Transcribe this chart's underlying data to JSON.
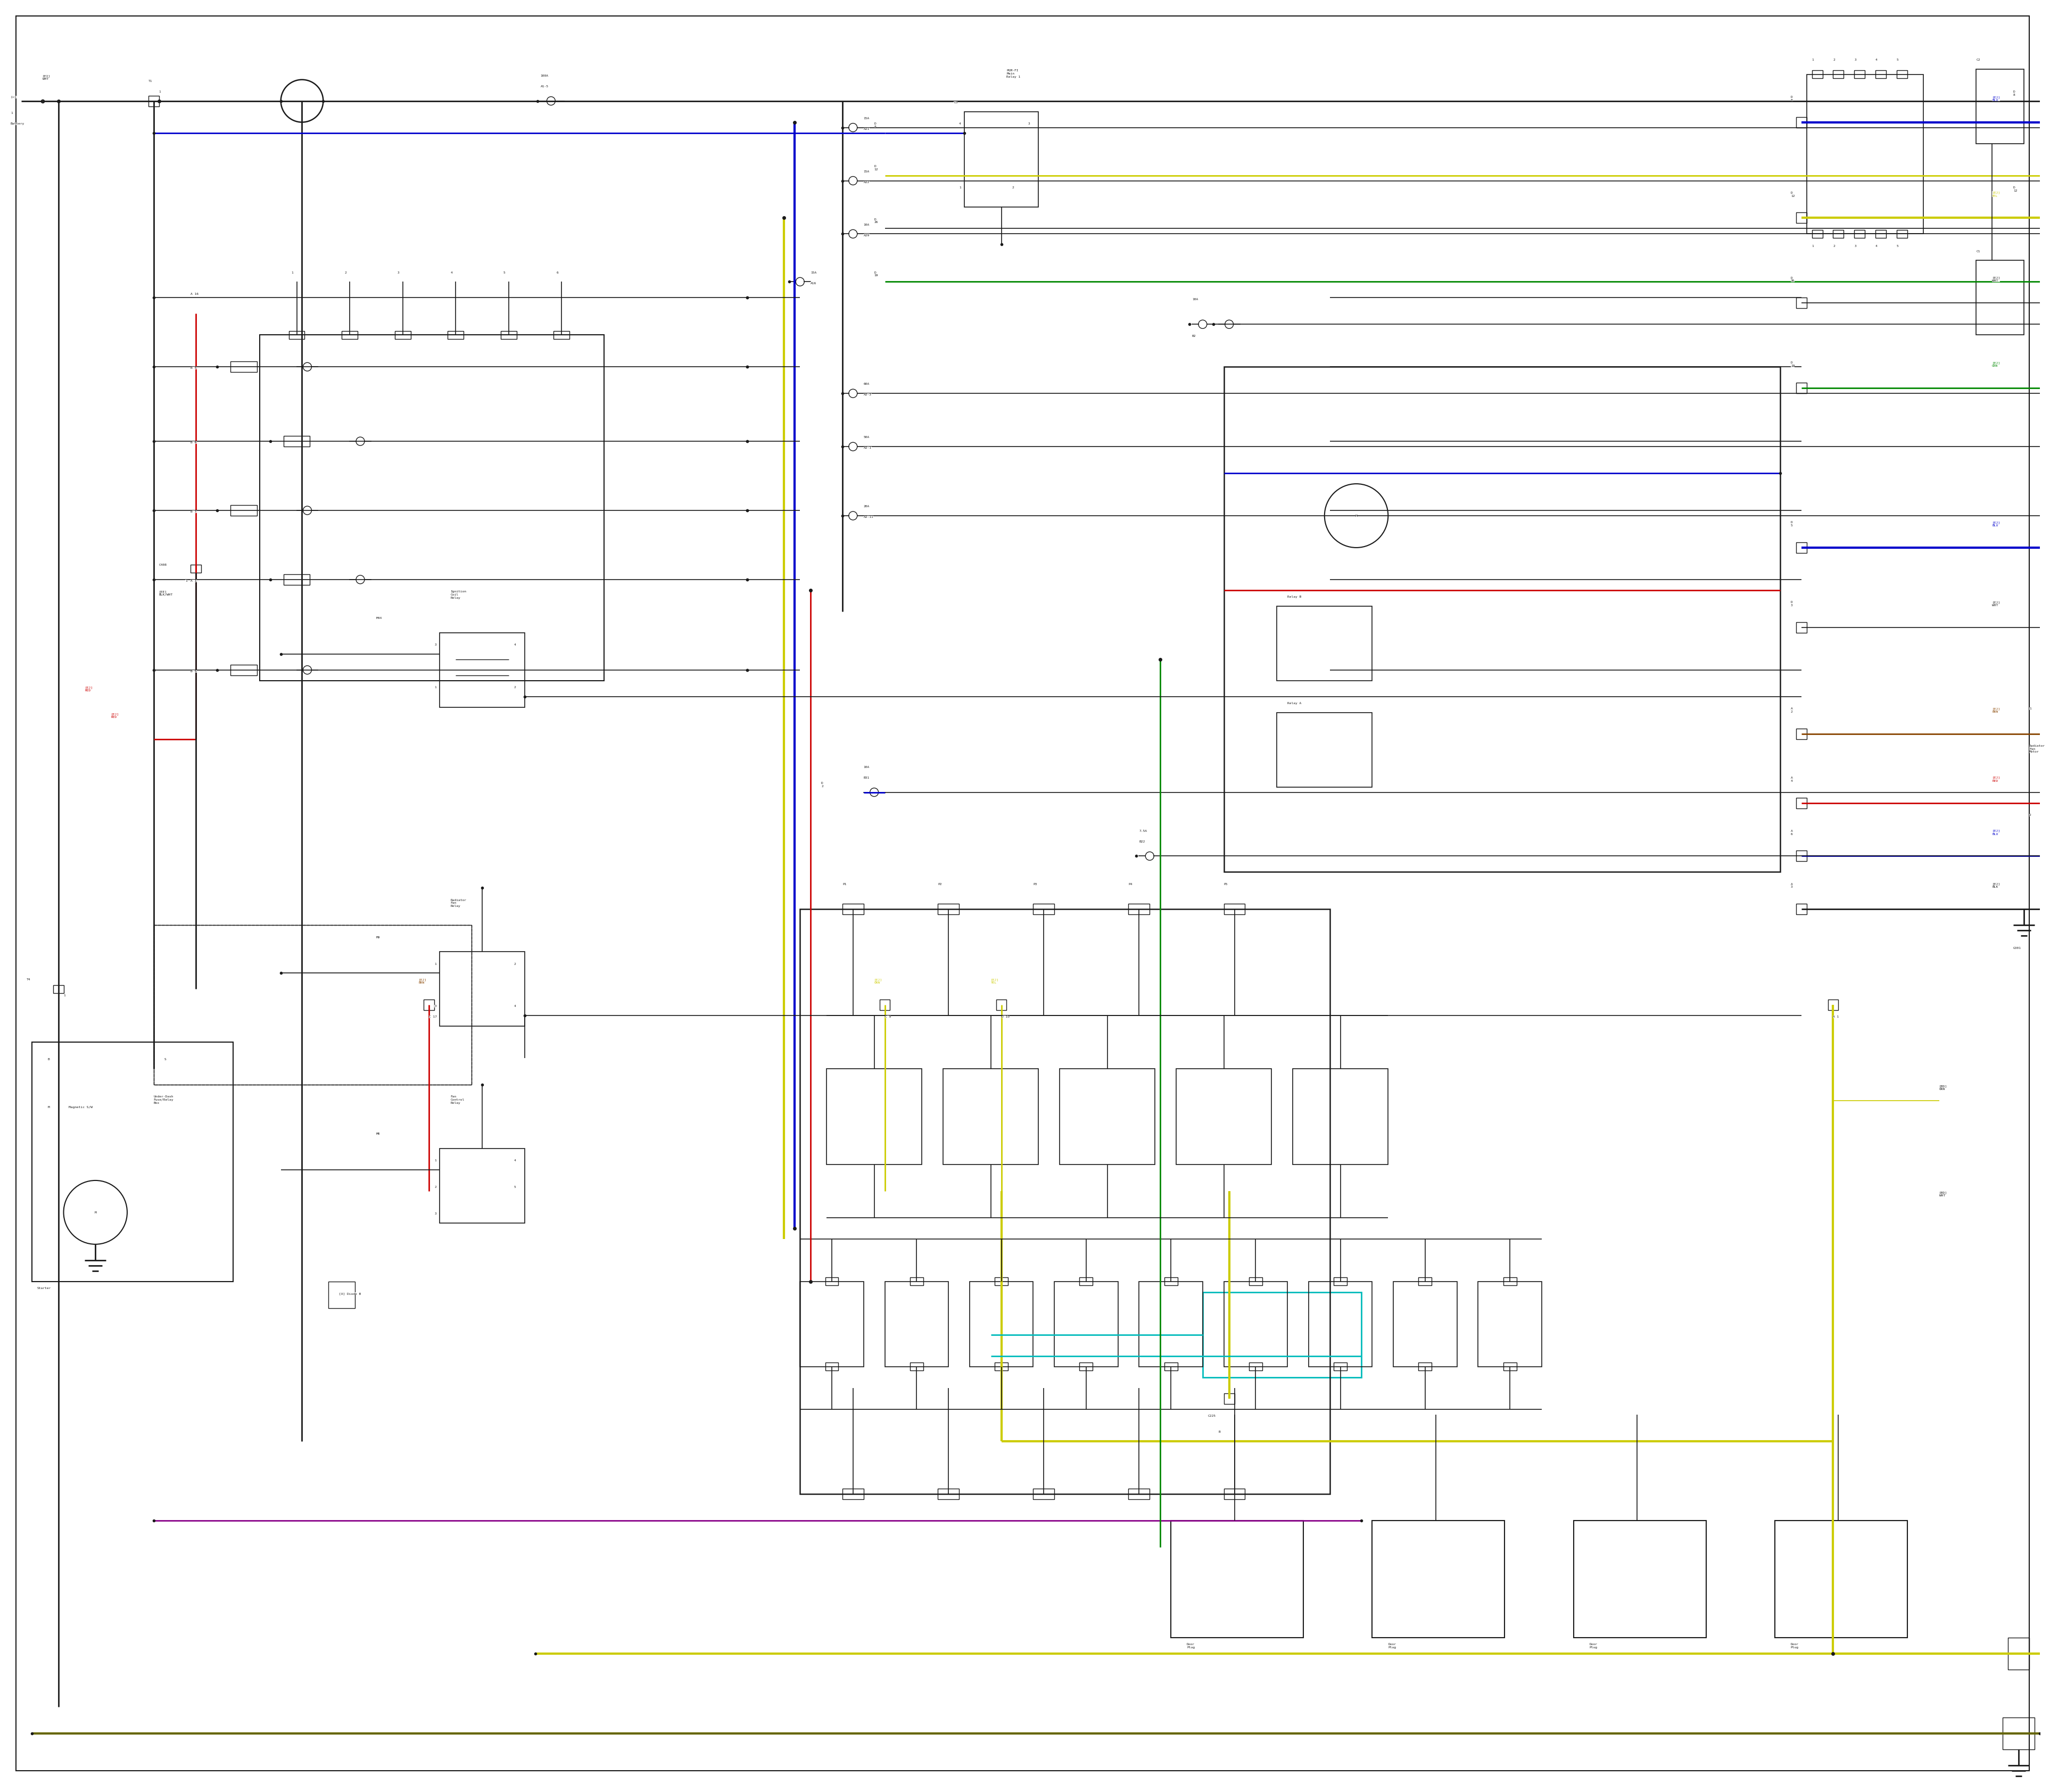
{
  "background": "#ffffff",
  "page_width": 38.4,
  "page_height": 33.5,
  "wire_colors": {
    "black": "#1a1a1a",
    "red": "#cc0000",
    "blue": "#0000cc",
    "yellow": "#cccc00",
    "green": "#008800",
    "cyan": "#00bbbb",
    "purple": "#880088",
    "olive": "#666600",
    "gray": "#666666",
    "darkgray": "#333333",
    "brown": "#884400"
  },
  "lw_main": 2.0,
  "lw_thin": 1.2,
  "lw_thick": 3.0,
  "fs": 5.5,
  "fs2": 4.5
}
